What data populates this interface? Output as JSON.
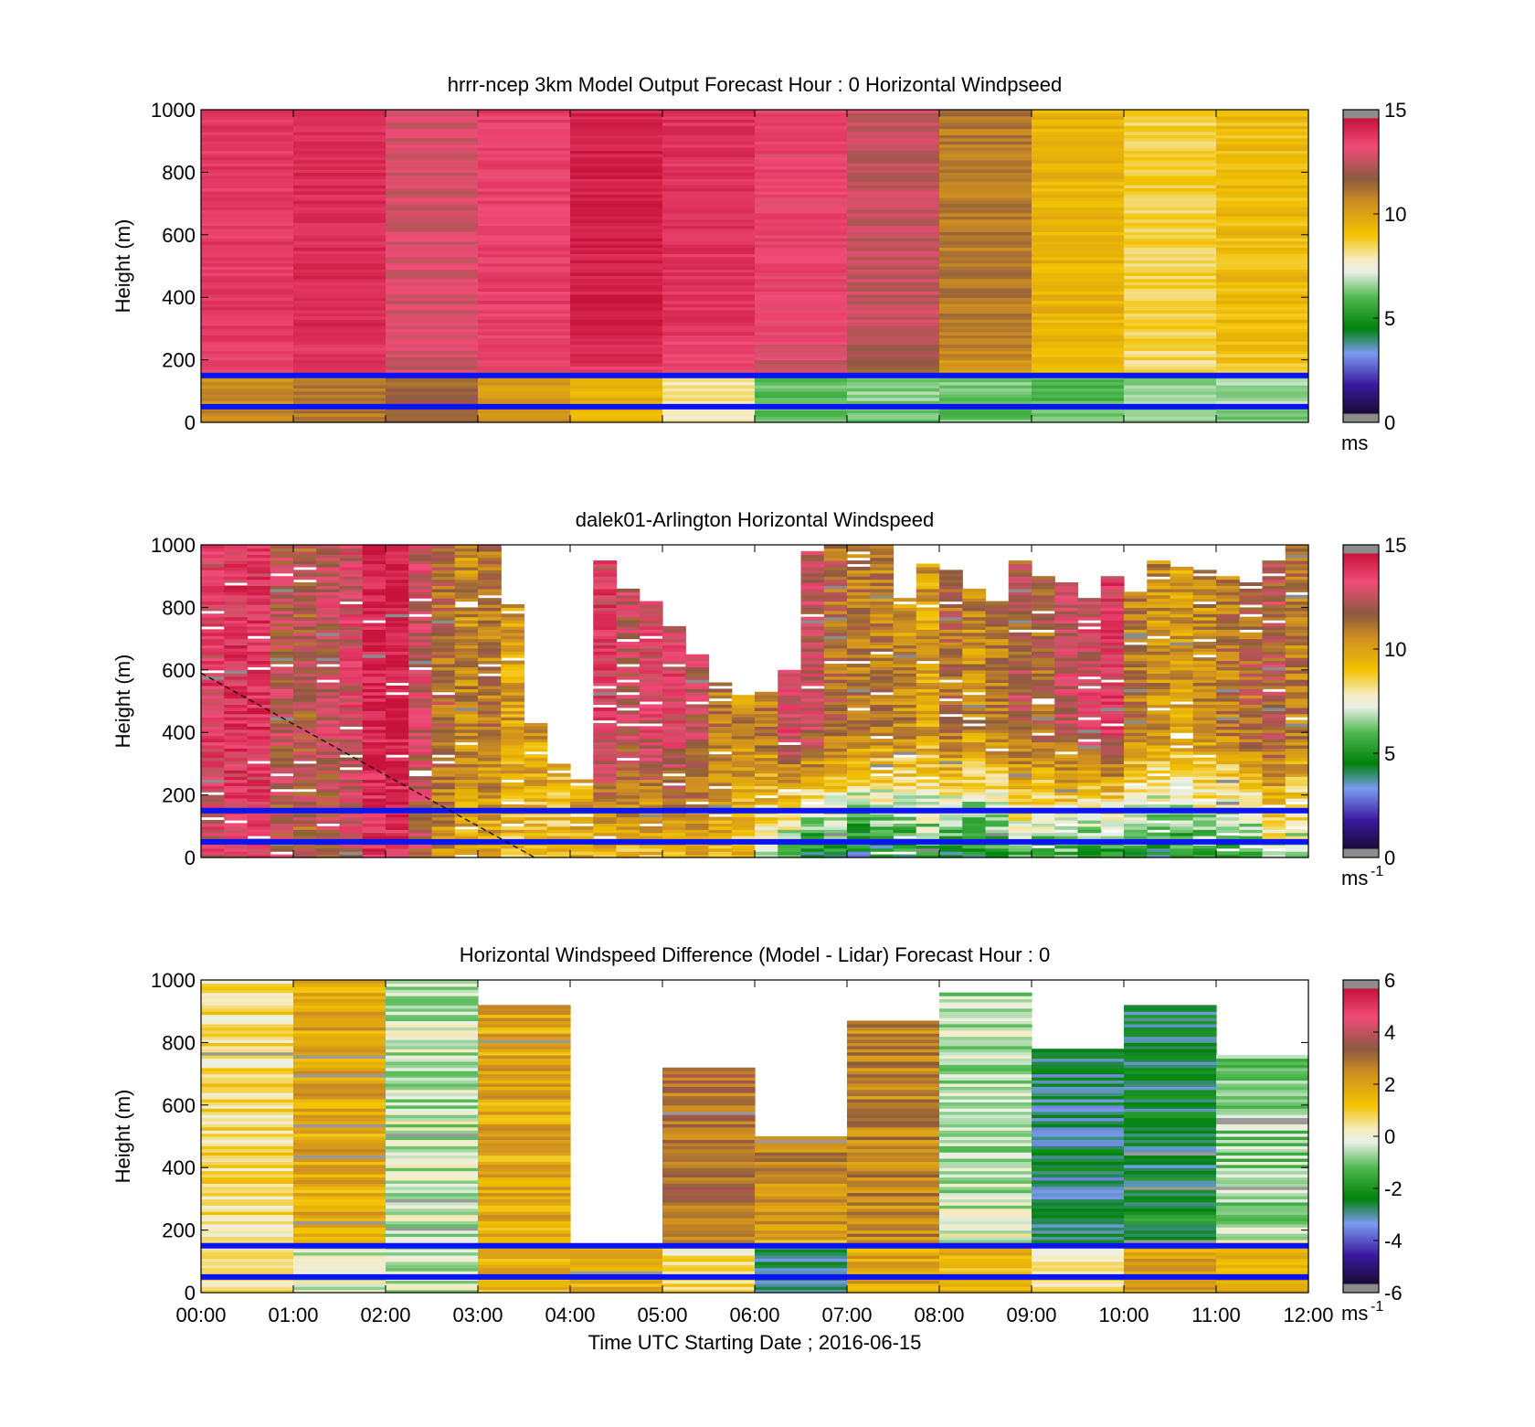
{
  "chart_data": [
    {
      "type": "heatmap",
      "title": "hrrr-ncep 3km Model Output   Forecast Hour : 0 Horizontal Windpseed",
      "ylabel": "Height (m)",
      "xlabel": "",
      "ylim": [
        0,
        1000
      ],
      "yticks": [
        "0",
        "200",
        "400",
        "600",
        "800",
        "1000"
      ],
      "xticklabels_shown": false,
      "colorbar": {
        "ticks": [
          "0",
          "5",
          "10",
          "15"
        ],
        "range": [
          0,
          15
        ],
        "unit": "ms"
      },
      "reference_lines_m": [
        50,
        150
      ],
      "time_bins": [
        "00:00",
        "01:00",
        "02:00",
        "03:00",
        "04:00",
        "05:00",
        "06:00",
        "07:00",
        "08:00",
        "09:00",
        "10:00",
        "11:00"
      ],
      "upper_layer_speed_ms": [
        13.8,
        14.2,
        12.8,
        13.6,
        14.6,
        14.0,
        13.4,
        12.6,
        11.0,
        9.4,
        8.6,
        9.2
      ],
      "near_surface_speed_ms": [
        10.5,
        11.0,
        11.5,
        10.2,
        9.5,
        8.0,
        6.0,
        6.5,
        6.2,
        6.0,
        6.5,
        6.5
      ]
    },
    {
      "type": "heatmap",
      "title": "dalek01-Arlington  Horizontal Windspeed",
      "ylabel": "Height (m)",
      "xlabel": "",
      "ylim": [
        0,
        1000
      ],
      "yticks": [
        "0",
        "200",
        "400",
        "600",
        "800",
        "1000"
      ],
      "xticklabels_shown": false,
      "colorbar": {
        "ticks": [
          "0",
          "5",
          "10",
          "15"
        ],
        "range": [
          0,
          15
        ],
        "unit": "ms",
        "unit_exp": "-1"
      },
      "reference_lines_m": [
        50,
        150
      ],
      "dashed_line": {
        "x": [
          "00:00",
          "03:37"
        ],
        "y": [
          590,
          0
        ]
      },
      "time_bins_hours_start": 0,
      "time_bin_width_hours": 0.25,
      "columns": 48,
      "column_top_heights_m": [
        1000,
        1000,
        1000,
        1000,
        1000,
        1000,
        1000,
        1000,
        1000,
        1000,
        1000,
        1000,
        1000,
        820,
        430,
        300,
        250,
        950,
        860,
        820,
        740,
        650,
        560,
        520,
        530,
        600,
        980,
        1000,
        1000,
        1000,
        830,
        940,
        920,
        860,
        820,
        960,
        900,
        880,
        830,
        900,
        850,
        950,
        930,
        920,
        900,
        880,
        950,
        1000
      ],
      "column_upper_speed_ms": [
        13.5,
        13.8,
        13.9,
        12.2,
        11.8,
        12.5,
        13.0,
        14.5,
        14.8,
        12.8,
        11.5,
        10.5,
        11.0,
        10.0,
        10.0,
        9.5,
        10.0,
        13.5,
        12.5,
        13.0,
        13.2,
        12.5,
        11.0,
        10.5,
        11.0,
        13.0,
        12.5,
        11.5,
        11.0,
        11.0,
        10.5,
        10.0,
        11.5,
        10.5,
        11.0,
        12.0,
        11.5,
        12.5,
        13.0,
        13.5,
        11.0,
        10.5,
        10.0,
        10.5,
        11.0,
        11.5,
        12.0,
        11.0
      ],
      "column_near_surface_speed_ms": [
        13.0,
        13.5,
        13.5,
        12.0,
        11.5,
        12.0,
        12.5,
        14.0,
        14.0,
        12.0,
        10.5,
        9.5,
        9.5,
        9.0,
        9.0,
        9.0,
        9.5,
        9.5,
        9.0,
        9.0,
        9.5,
        10.0,
        9.5,
        9.0,
        7.5,
        5.5,
        4.5,
        4.5,
        4.0,
        4.0,
        5.0,
        5.5,
        4.5,
        4.5,
        5.0,
        6.0,
        5.5,
        5.5,
        5.0,
        4.5,
        5.0,
        4.5,
        5.0,
        5.5,
        5.0,
        5.5,
        7.0,
        6.5
      ]
    },
    {
      "type": "heatmap",
      "title": "Horizontal Windspeed Difference (Model - Lidar) Forecast Hour : 0",
      "ylabel": "Height (m)",
      "xlabel": "Time UTC  Starting Date ; 2016-06-15",
      "ylim": [
        0,
        1000
      ],
      "yticks": [
        "0",
        "200",
        "400",
        "600",
        "800",
        "1000"
      ],
      "xticks": [
        "00:00",
        "01:00",
        "02:00",
        "03:00",
        "04:00",
        "05:00",
        "06:00",
        "07:00",
        "08:00",
        "09:00",
        "10:00",
        "11:00",
        "12:00"
      ],
      "colorbar": {
        "ticks": [
          "-6",
          "-4",
          "-2",
          "0",
          "2",
          "4",
          "6"
        ],
        "range": [
          -6,
          6
        ],
        "unit": "ms",
        "unit_exp": "-1"
      },
      "reference_lines_m": [
        50,
        150
      ],
      "time_bins": [
        "00:00",
        "01:00",
        "02:00",
        "03:00",
        "04:00",
        "05:00",
        "06:00",
        "07:00",
        "08:00",
        "09:00",
        "10:00",
        "11:00"
      ],
      "column_top_heights_m": [
        1000,
        1000,
        1000,
        920,
        150,
        720,
        500,
        870,
        960,
        780,
        920,
        760
      ],
      "upper_difference_ms": [
        0.6,
        1.8,
        -0.4,
        1.8,
        null,
        3.0,
        2.5,
        2.6,
        -0.5,
        -2.8,
        -2.6,
        -0.8
      ],
      "lower_difference_ms": [
        0.8,
        -0.3,
        -0.5,
        1.5,
        1.6,
        0.5,
        -3.0,
        1.8,
        1.6,
        0.5,
        1.8,
        1.8
      ]
    }
  ]
}
